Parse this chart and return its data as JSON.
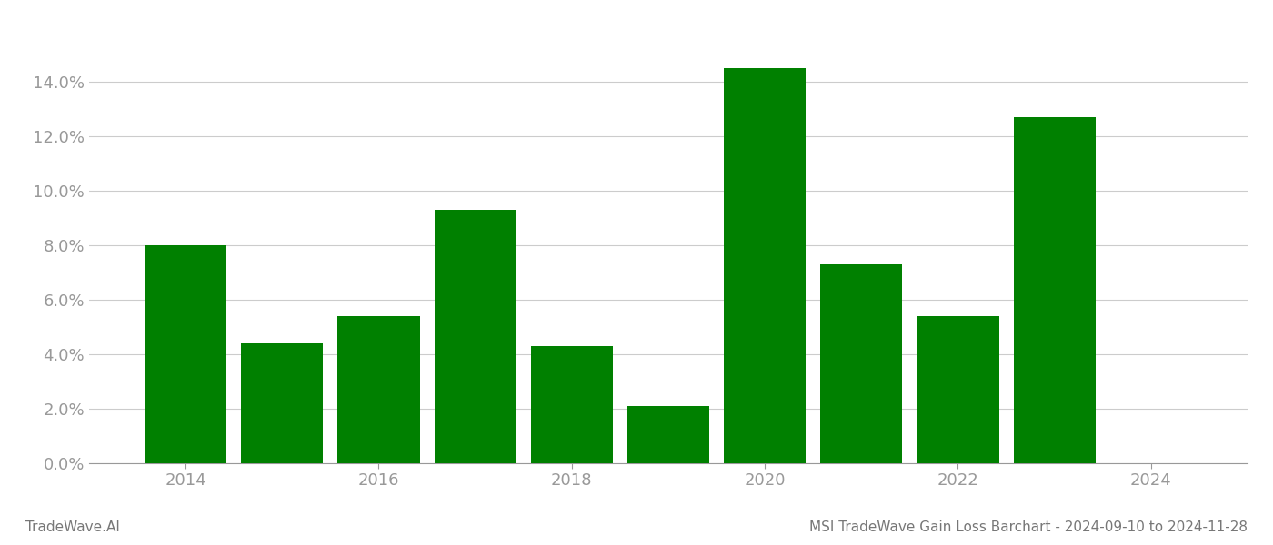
{
  "years": [
    2014,
    2015,
    2016,
    2017,
    2018,
    2019,
    2020,
    2021,
    2022,
    2023
  ],
  "values": [
    0.08,
    0.044,
    0.054,
    0.093,
    0.043,
    0.021,
    0.145,
    0.073,
    0.054,
    0.127
  ],
  "bar_color": "#008000",
  "title": "MSI TradeWave Gain Loss Barchart - 2024-09-10 to 2024-11-28",
  "watermark": "TradeWave.AI",
  "xlim": [
    2013.0,
    2025.0
  ],
  "ylim": [
    0.0,
    0.16
  ],
  "yticks": [
    0.0,
    0.02,
    0.04,
    0.06,
    0.08,
    0.1,
    0.12,
    0.14
  ],
  "xticks": [
    2014,
    2016,
    2018,
    2020,
    2022,
    2024
  ],
  "background_color": "#ffffff",
  "grid_color": "#cccccc",
  "bar_width": 0.85,
  "title_fontsize": 11,
  "tick_fontsize": 13,
  "watermark_fontsize": 11,
  "title_color": "#777777",
  "watermark_color": "#777777",
  "tick_color": "#999999"
}
